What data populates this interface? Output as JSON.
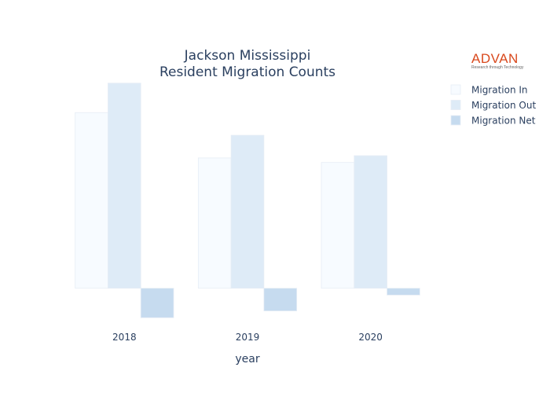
{
  "chart_data": {
    "type": "bar",
    "title_lines": [
      "Jackson Mississippi",
      "Resident Migration Counts"
    ],
    "xlabel": "year",
    "ylabel": "",
    "categories": [
      "2018",
      "2019",
      "2020"
    ],
    "series": [
      {
        "name": "Migration In",
        "values": [
          1550,
          1150,
          1110
        ],
        "color": "#f7fbff"
      },
      {
        "name": "Migration Out",
        "values": [
          1810,
          1350,
          1170
        ],
        "color": "#deebf7"
      },
      {
        "name": "Migration Net",
        "values": [
          -260,
          -200,
          -60
        ],
        "color": "#c6dbef"
      }
    ],
    "ylim": [
      -300,
      1850
    ],
    "grid": false,
    "legend_position": "top-right"
  },
  "logo": {
    "brand": "ADVAN",
    "tagline": "Research through Technology"
  }
}
